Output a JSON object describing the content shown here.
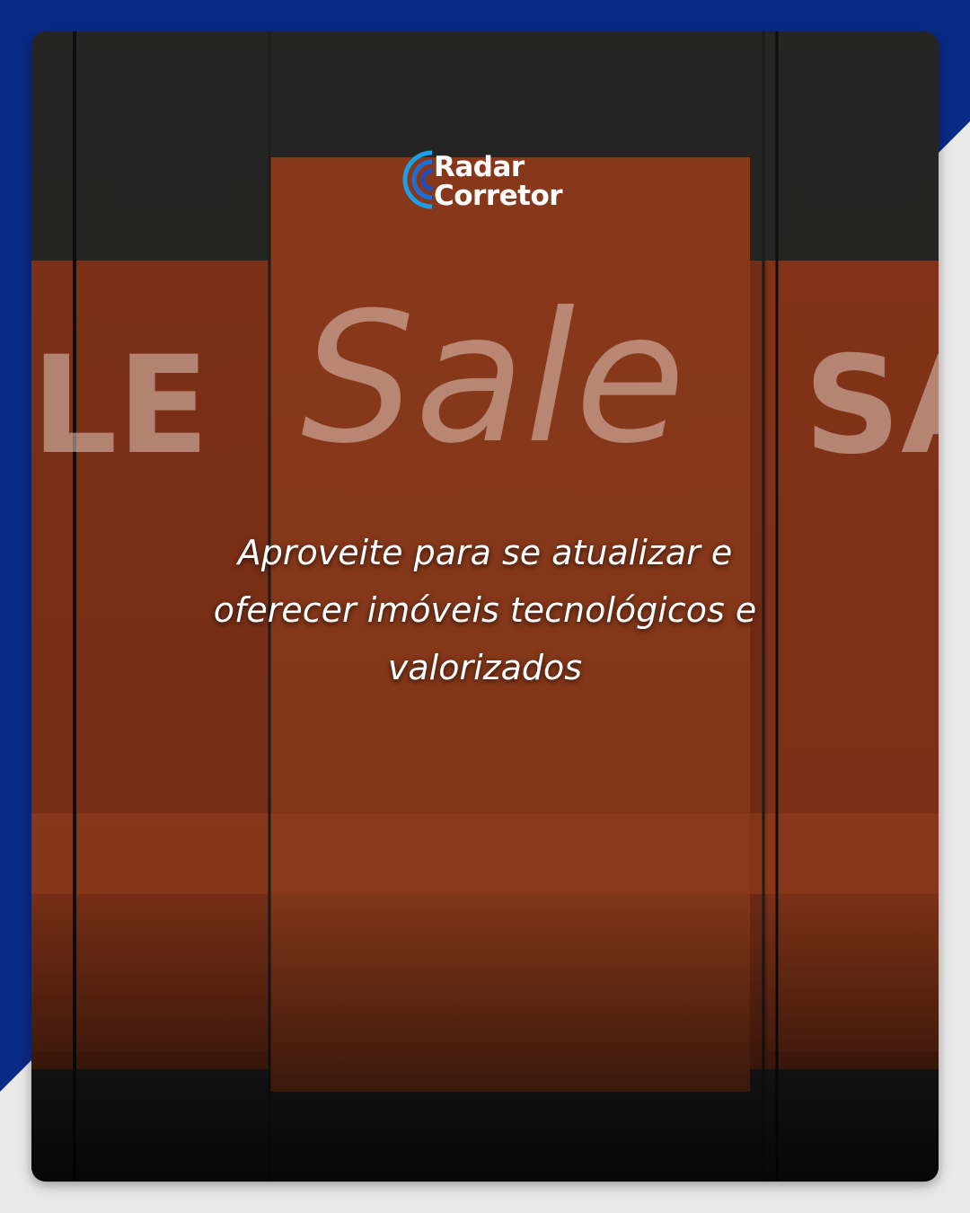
{
  "logo": {
    "line1": "Radar",
    "line2": "Corretor"
  },
  "signage": {
    "center": "Sale",
    "left": "LE",
    "right": "SA"
  },
  "caption": {
    "lines": [
      "Aproveite para se atualizar e",
      "oferecer imóveis tecnológicos e",
      "valorizados"
    ]
  }
}
